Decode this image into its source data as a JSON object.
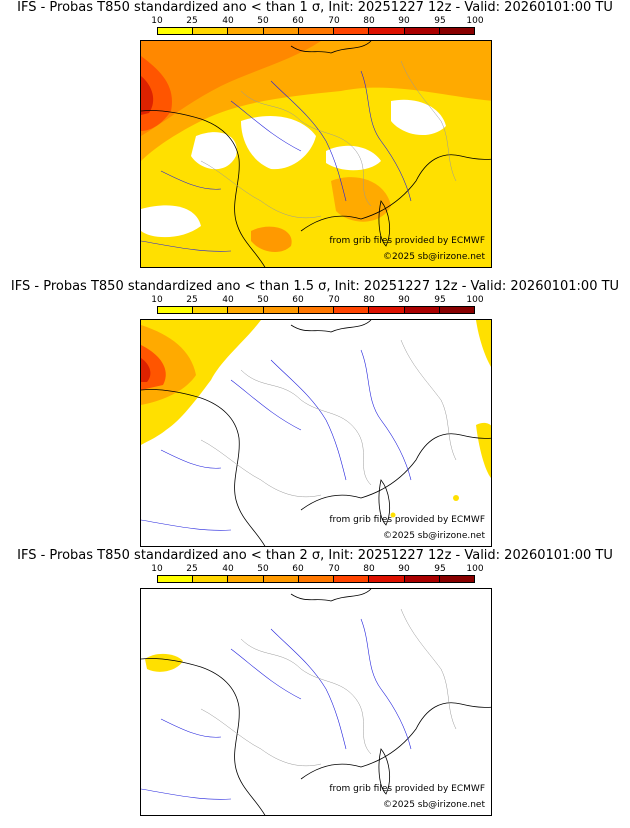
{
  "colors": {
    "scale": [
      "#ffff00",
      "#ffd700",
      "#ffaa00",
      "#ff9900",
      "#ff7700",
      "#ff4400",
      "#dd1100",
      "#aa0000",
      "#880000",
      "#550000"
    ],
    "coast": "#000000",
    "river": "#2222dd",
    "border": "#999999"
  },
  "scale_ticks": [
    "10",
    "25",
    "40",
    "50",
    "60",
    "70",
    "80",
    "90",
    "95",
    "100"
  ],
  "credits": {
    "source": "from grib files provided by ECMWF",
    "copyright": "©2025 sb@irizone.net"
  },
  "panels": [
    {
      "title": "IFS - Probas T850  standardized ano < than 1 σ, Init: 20251227 12z - Valid: 20260101:00 TU",
      "threshold_sigma": 1
    },
    {
      "title": "IFS - Probas T850  standardized ano < than 1.5 σ, Init: 20251227 12z - Valid: 20260101:00 TU",
      "threshold_sigma": 1.5
    },
    {
      "title": "IFS - Probas T850  standardized ano < than 2 σ, Init: 20251227 12z - Valid: 20260101:00 TU",
      "threshold_sigma": 2
    }
  ]
}
